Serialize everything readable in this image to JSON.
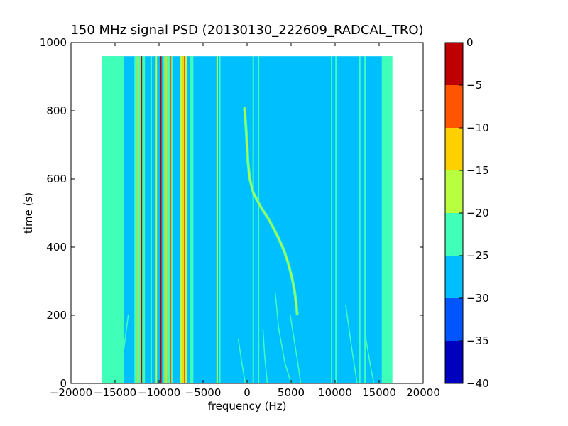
{
  "chart_data": {
    "type": "heatmap",
    "title": "150 MHz signal PSD (20130130_222609_RADCAL_TRO)",
    "xlabel": "frequency (Hz)",
    "ylabel": "time (s)",
    "xlim": [
      -20000,
      20000
    ],
    "ylim": [
      0,
      1000
    ],
    "x_ticks": [
      -20000,
      -15000,
      -10000,
      -5000,
      0,
      5000,
      10000,
      15000,
      20000
    ],
    "y_ticks": [
      0,
      200,
      400,
      600,
      800,
      1000
    ],
    "data_extent": {
      "x": [
        -16500,
        16500
      ],
      "y": [
        0,
        960
      ]
    },
    "colormap": "jet",
    "colorbar": {
      "range": [
        -40,
        0
      ],
      "ticks": [
        0,
        -5,
        -10,
        -15,
        -20,
        -25,
        -30,
        -35,
        -40
      ],
      "levels": [
        {
          "range": [
            -40,
            -35
          ],
          "color": "#0000bf"
        },
        {
          "range": [
            -35,
            -30
          ],
          "color": "#0055ff"
        },
        {
          "range": [
            -30,
            -25
          ],
          "color": "#00bfff"
        },
        {
          "range": [
            -25,
            -20
          ],
          "color": "#40ffb8"
        },
        {
          "range": [
            -20,
            -15
          ],
          "color": "#b8ff40"
        },
        {
          "range": [
            -15,
            -10
          ],
          "color": "#ffd000"
        },
        {
          "range": [
            -10,
            -5
          ],
          "color": "#ff5500"
        },
        {
          "range": [
            -5,
            0
          ],
          "color": "#bf0000"
        }
      ]
    },
    "background_level": -27.5,
    "features": [
      {
        "kind": "vertical_band",
        "x_range": [
          -16500,
          -14000
        ],
        "level": -22.5
      },
      {
        "kind": "vertical_band",
        "x_range": [
          15300,
          16500
        ],
        "level": -22.5
      },
      {
        "kind": "vertical_band",
        "x_range": [
          -12800,
          -11600
        ],
        "level": -22.5
      },
      {
        "kind": "vertical_band",
        "x_range": [
          -9500,
          -8400
        ],
        "level": -22.5
      },
      {
        "kind": "vertical_band",
        "x_range": [
          -7600,
          -6800
        ],
        "level": -17.5
      },
      {
        "kind": "vertical_band",
        "x_range": [
          -6500,
          -6100
        ],
        "level": -22.5
      },
      {
        "kind": "vertical_line",
        "x": -12400,
        "level": -12.5
      },
      {
        "kind": "vertical_line",
        "x": -12000,
        "level": -2.5
      },
      {
        "kind": "vertical_line",
        "x": -10900,
        "level": -22.5
      },
      {
        "kind": "vertical_line",
        "x": -10300,
        "level": -17.5
      },
      {
        "kind": "vertical_line",
        "x": -9800,
        "level": -2.5
      },
      {
        "kind": "vertical_line",
        "x": -9200,
        "level": -12.5
      },
      {
        "kind": "vertical_line",
        "x": -8700,
        "level": -7.5
      },
      {
        "kind": "vertical_line",
        "x": -7300,
        "level": -12.5
      },
      {
        "kind": "vertical_line",
        "x": -7100,
        "level": -7.5
      },
      {
        "kind": "vertical_line",
        "x": -3400,
        "level": -17.5
      },
      {
        "kind": "vertical_line",
        "x": -3100,
        "level": -22.5
      },
      {
        "kind": "vertical_line",
        "x": 700,
        "level": -22.5
      },
      {
        "kind": "vertical_line",
        "x": 1300,
        "level": -22.5
      },
      {
        "kind": "vertical_line",
        "x": 9600,
        "level": -22.5
      },
      {
        "kind": "vertical_line",
        "x": 10100,
        "level": -22.5
      },
      {
        "kind": "vertical_line",
        "x": 12800,
        "level": -22.5
      },
      {
        "kind": "vertical_line",
        "x": 13400,
        "level": -22.5
      }
    ],
    "trace": {
      "level": -15,
      "points": [
        [
          -300,
          810
        ],
        [
          -150,
          760
        ],
        [
          0,
          700
        ],
        [
          100,
          650
        ],
        [
          300,
          600
        ],
        [
          700,
          560
        ],
        [
          1500,
          520
        ],
        [
          2500,
          480
        ],
        [
          3500,
          430
        ],
        [
          4200,
          390
        ],
        [
          4700,
          350
        ],
        [
          5100,
          310
        ],
        [
          5400,
          270
        ],
        [
          5600,
          230
        ],
        [
          5700,
          200
        ]
      ]
    },
    "doppler_curves": [
      {
        "level": -22.5,
        "points": [
          [
            -13500,
            200
          ],
          [
            -14000,
            100
          ],
          [
            -14700,
            0
          ]
        ]
      },
      {
        "level": -22.5,
        "points": [
          [
            -1000,
            130
          ],
          [
            -600,
            60
          ],
          [
            -200,
            0
          ]
        ]
      },
      {
        "level": -22.5,
        "points": [
          [
            1800,
            160
          ],
          [
            2000,
            80
          ],
          [
            2300,
            0
          ]
        ]
      },
      {
        "level": -22.5,
        "points": [
          [
            3200,
            265
          ],
          [
            3600,
            160
          ],
          [
            4300,
            60
          ],
          [
            5000,
            0
          ]
        ]
      },
      {
        "level": -22.5,
        "points": [
          [
            4900,
            200
          ],
          [
            5700,
            70
          ],
          [
            6100,
            0
          ]
        ]
      },
      {
        "level": -22.5,
        "points": [
          [
            11200,
            230
          ],
          [
            11900,
            100
          ],
          [
            12500,
            0
          ]
        ]
      },
      {
        "level": -22.5,
        "points": [
          [
            13500,
            130
          ],
          [
            14100,
            40
          ],
          [
            14400,
            0
          ]
        ]
      }
    ]
  }
}
